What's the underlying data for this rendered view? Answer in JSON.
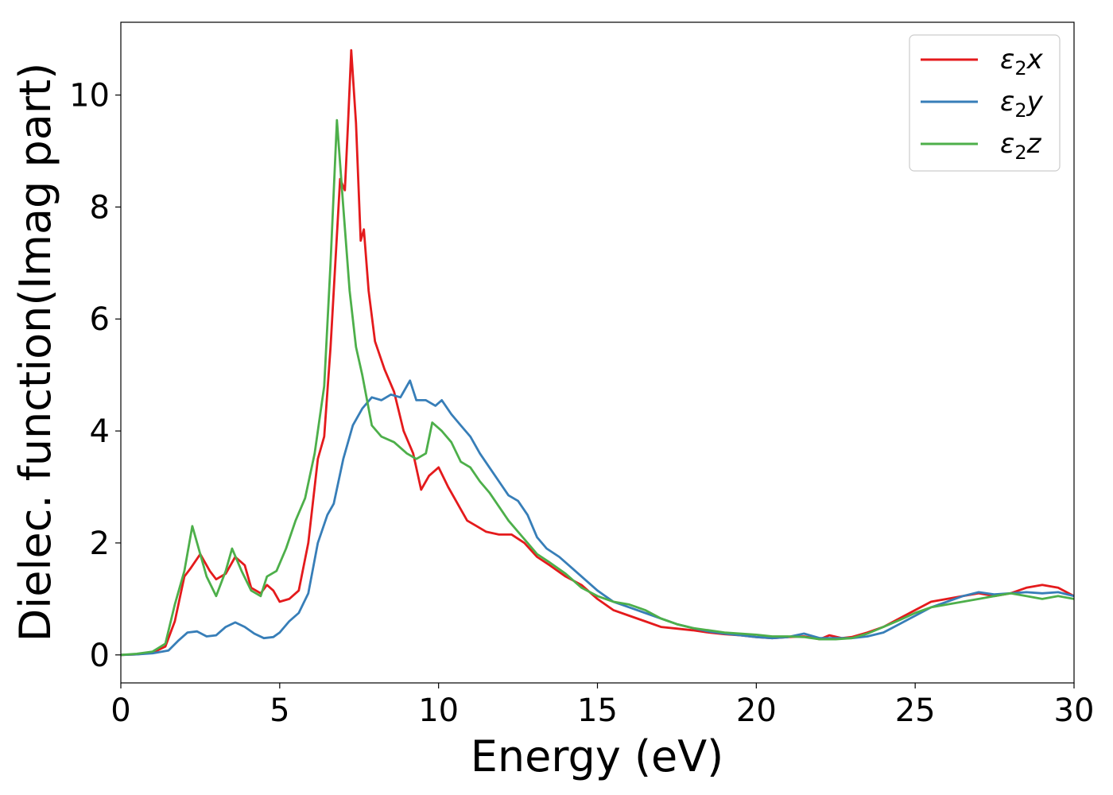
{
  "chart_data": {
    "type": "line",
    "xlabel": "Energy (eV)",
    "ylabel": "Dielec. function(Imag part)",
    "xlim": [
      0,
      30
    ],
    "ylim": [
      -0.5,
      11.3
    ],
    "xticks": [
      0,
      5,
      10,
      15,
      20,
      25,
      30
    ],
    "yticks": [
      0,
      2,
      4,
      6,
      8,
      10
    ],
    "xtick_labels": [
      "0",
      "5",
      "10",
      "15",
      "20",
      "25",
      "30"
    ],
    "ytick_labels": [
      "0",
      "2",
      "4",
      "6",
      "8",
      "10"
    ],
    "grid": false,
    "legend_position": "top-right",
    "series": [
      {
        "name": "ε₂x",
        "legend_main": "ε",
        "legend_sub": "2",
        "legend_var": "x",
        "color": "#e41a1c",
        "points": [
          [
            0,
            0
          ],
          [
            0.5,
            0.01
          ],
          [
            1.0,
            0.04
          ],
          [
            1.4,
            0.15
          ],
          [
            1.7,
            0.6
          ],
          [
            2.0,
            1.4
          ],
          [
            2.2,
            1.55
          ],
          [
            2.5,
            1.8
          ],
          [
            2.8,
            1.5
          ],
          [
            3.0,
            1.35
          ],
          [
            3.3,
            1.45
          ],
          [
            3.6,
            1.75
          ],
          [
            3.9,
            1.6
          ],
          [
            4.1,
            1.2
          ],
          [
            4.4,
            1.1
          ],
          [
            4.6,
            1.25
          ],
          [
            4.8,
            1.15
          ],
          [
            5.0,
            0.95
          ],
          [
            5.3,
            1.0
          ],
          [
            5.6,
            1.15
          ],
          [
            5.9,
            2.0
          ],
          [
            6.2,
            3.5
          ],
          [
            6.4,
            3.9
          ],
          [
            6.6,
            5.5
          ],
          [
            6.9,
            8.5
          ],
          [
            7.05,
            8.3
          ],
          [
            7.15,
            9.5
          ],
          [
            7.25,
            10.8
          ],
          [
            7.4,
            9.5
          ],
          [
            7.55,
            7.4
          ],
          [
            7.65,
            7.6
          ],
          [
            7.8,
            6.5
          ],
          [
            8.0,
            5.6
          ],
          [
            8.3,
            5.1
          ],
          [
            8.6,
            4.7
          ],
          [
            8.9,
            4.0
          ],
          [
            9.2,
            3.6
          ],
          [
            9.45,
            2.95
          ],
          [
            9.7,
            3.2
          ],
          [
            10.0,
            3.35
          ],
          [
            10.3,
            3.0
          ],
          [
            10.6,
            2.7
          ],
          [
            10.9,
            2.4
          ],
          [
            11.2,
            2.3
          ],
          [
            11.5,
            2.2
          ],
          [
            11.9,
            2.15
          ],
          [
            12.3,
            2.15
          ],
          [
            12.7,
            2.0
          ],
          [
            13.1,
            1.75
          ],
          [
            13.5,
            1.6
          ],
          [
            14.0,
            1.4
          ],
          [
            14.5,
            1.25
          ],
          [
            15.0,
            1.0
          ],
          [
            15.5,
            0.8
          ],
          [
            16.0,
            0.7
          ],
          [
            16.5,
            0.6
          ],
          [
            17.0,
            0.5
          ],
          [
            17.5,
            0.47
          ],
          [
            18.0,
            0.44
          ],
          [
            18.5,
            0.4
          ],
          [
            19.0,
            0.37
          ],
          [
            19.5,
            0.35
          ],
          [
            20.0,
            0.32
          ],
          [
            20.5,
            0.3
          ],
          [
            21.0,
            0.32
          ],
          [
            21.5,
            0.33
          ],
          [
            22.0,
            0.28
          ],
          [
            22.3,
            0.35
          ],
          [
            22.7,
            0.3
          ],
          [
            23.0,
            0.32
          ],
          [
            23.5,
            0.4
          ],
          [
            24.0,
            0.5
          ],
          [
            24.5,
            0.65
          ],
          [
            25.0,
            0.8
          ],
          [
            25.5,
            0.95
          ],
          [
            26.0,
            1.0
          ],
          [
            26.5,
            1.05
          ],
          [
            27.0,
            1.1
          ],
          [
            27.5,
            1.05
          ],
          [
            28.0,
            1.1
          ],
          [
            28.5,
            1.2
          ],
          [
            29.0,
            1.25
          ],
          [
            29.5,
            1.2
          ],
          [
            30.0,
            1.05
          ]
        ]
      },
      {
        "name": "ε₂y",
        "legend_main": "ε",
        "legend_sub": "2",
        "legend_var": "y",
        "color": "#377eb8",
        "points": [
          [
            0,
            0
          ],
          [
            0.5,
            0.01
          ],
          [
            1.0,
            0.03
          ],
          [
            1.5,
            0.08
          ],
          [
            1.8,
            0.25
          ],
          [
            2.1,
            0.4
          ],
          [
            2.4,
            0.42
          ],
          [
            2.7,
            0.33
          ],
          [
            3.0,
            0.35
          ],
          [
            3.3,
            0.5
          ],
          [
            3.6,
            0.58
          ],
          [
            3.9,
            0.5
          ],
          [
            4.2,
            0.38
          ],
          [
            4.5,
            0.3
          ],
          [
            4.8,
            0.32
          ],
          [
            5.0,
            0.4
          ],
          [
            5.3,
            0.6
          ],
          [
            5.6,
            0.75
          ],
          [
            5.9,
            1.1
          ],
          [
            6.2,
            2.0
          ],
          [
            6.5,
            2.5
          ],
          [
            6.7,
            2.7
          ],
          [
            7.0,
            3.5
          ],
          [
            7.3,
            4.1
          ],
          [
            7.6,
            4.4
          ],
          [
            7.9,
            4.6
          ],
          [
            8.2,
            4.55
          ],
          [
            8.5,
            4.65
          ],
          [
            8.8,
            4.6
          ],
          [
            9.1,
            4.9
          ],
          [
            9.3,
            4.55
          ],
          [
            9.6,
            4.55
          ],
          [
            9.9,
            4.45
          ],
          [
            10.1,
            4.55
          ],
          [
            10.4,
            4.3
          ],
          [
            10.7,
            4.1
          ],
          [
            11.0,
            3.9
          ],
          [
            11.3,
            3.6
          ],
          [
            11.6,
            3.35
          ],
          [
            11.9,
            3.1
          ],
          [
            12.2,
            2.85
          ],
          [
            12.5,
            2.75
          ],
          [
            12.8,
            2.5
          ],
          [
            13.1,
            2.1
          ],
          [
            13.4,
            1.9
          ],
          [
            13.8,
            1.75
          ],
          [
            14.2,
            1.55
          ],
          [
            14.6,
            1.35
          ],
          [
            15.0,
            1.15
          ],
          [
            15.5,
            0.95
          ],
          [
            16.0,
            0.85
          ],
          [
            16.5,
            0.75
          ],
          [
            17.0,
            0.65
          ],
          [
            17.5,
            0.55
          ],
          [
            18.0,
            0.48
          ],
          [
            18.5,
            0.42
          ],
          [
            19.0,
            0.38
          ],
          [
            19.5,
            0.35
          ],
          [
            20.0,
            0.32
          ],
          [
            20.5,
            0.3
          ],
          [
            21.0,
            0.32
          ],
          [
            21.5,
            0.38
          ],
          [
            22.0,
            0.3
          ],
          [
            22.5,
            0.3
          ],
          [
            23.0,
            0.3
          ],
          [
            23.5,
            0.33
          ],
          [
            24.0,
            0.4
          ],
          [
            24.5,
            0.55
          ],
          [
            25.0,
            0.7
          ],
          [
            25.5,
            0.85
          ],
          [
            26.0,
            0.95
          ],
          [
            26.5,
            1.05
          ],
          [
            27.0,
            1.12
          ],
          [
            27.5,
            1.08
          ],
          [
            28.0,
            1.1
          ],
          [
            28.5,
            1.12
          ],
          [
            29.0,
            1.1
          ],
          [
            29.5,
            1.12
          ],
          [
            30.0,
            1.05
          ]
        ]
      },
      {
        "name": "ε₂z",
        "legend_main": "ε",
        "legend_sub": "2",
        "legend_var": "z",
        "color": "#4daf4a",
        "points": [
          [
            0,
            0
          ],
          [
            0.5,
            0.02
          ],
          [
            1.0,
            0.06
          ],
          [
            1.4,
            0.2
          ],
          [
            1.7,
            0.9
          ],
          [
            2.0,
            1.5
          ],
          [
            2.25,
            2.3
          ],
          [
            2.45,
            1.9
          ],
          [
            2.7,
            1.4
          ],
          [
            3.0,
            1.05
          ],
          [
            3.3,
            1.5
          ],
          [
            3.5,
            1.9
          ],
          [
            3.8,
            1.5
          ],
          [
            4.1,
            1.15
          ],
          [
            4.4,
            1.05
          ],
          [
            4.6,
            1.4
          ],
          [
            4.9,
            1.5
          ],
          [
            5.2,
            1.9
          ],
          [
            5.5,
            2.4
          ],
          [
            5.8,
            2.8
          ],
          [
            6.1,
            3.6
          ],
          [
            6.4,
            4.8
          ],
          [
            6.6,
            7.0
          ],
          [
            6.8,
            9.55
          ],
          [
            7.0,
            8.0
          ],
          [
            7.2,
            6.5
          ],
          [
            7.4,
            5.5
          ],
          [
            7.6,
            5.0
          ],
          [
            7.9,
            4.1
          ],
          [
            8.2,
            3.9
          ],
          [
            8.6,
            3.8
          ],
          [
            9.0,
            3.6
          ],
          [
            9.3,
            3.5
          ],
          [
            9.6,
            3.6
          ],
          [
            9.8,
            4.15
          ],
          [
            10.1,
            4.0
          ],
          [
            10.4,
            3.8
          ],
          [
            10.7,
            3.45
          ],
          [
            11.0,
            3.35
          ],
          [
            11.3,
            3.1
          ],
          [
            11.6,
            2.9
          ],
          [
            11.9,
            2.65
          ],
          [
            12.2,
            2.4
          ],
          [
            12.5,
            2.2
          ],
          [
            12.8,
            2.0
          ],
          [
            13.1,
            1.8
          ],
          [
            13.5,
            1.65
          ],
          [
            14.0,
            1.45
          ],
          [
            14.5,
            1.2
          ],
          [
            15.0,
            1.05
          ],
          [
            15.5,
            0.95
          ],
          [
            16.0,
            0.9
          ],
          [
            16.5,
            0.8
          ],
          [
            17.0,
            0.65
          ],
          [
            17.5,
            0.55
          ],
          [
            18.0,
            0.48
          ],
          [
            18.5,
            0.44
          ],
          [
            19.0,
            0.4
          ],
          [
            19.5,
            0.38
          ],
          [
            20.0,
            0.36
          ],
          [
            20.5,
            0.33
          ],
          [
            21.0,
            0.33
          ],
          [
            21.5,
            0.32
          ],
          [
            22.0,
            0.28
          ],
          [
            22.5,
            0.28
          ],
          [
            23.0,
            0.3
          ],
          [
            23.5,
            0.38
          ],
          [
            24.0,
            0.5
          ],
          [
            24.5,
            0.62
          ],
          [
            25.0,
            0.75
          ],
          [
            25.5,
            0.85
          ],
          [
            26.0,
            0.9
          ],
          [
            26.5,
            0.95
          ],
          [
            27.0,
            1.0
          ],
          [
            27.5,
            1.05
          ],
          [
            28.0,
            1.1
          ],
          [
            28.5,
            1.05
          ],
          [
            29.0,
            1.0
          ],
          [
            29.5,
            1.05
          ],
          [
            30.0,
            1.0
          ]
        ]
      }
    ]
  }
}
